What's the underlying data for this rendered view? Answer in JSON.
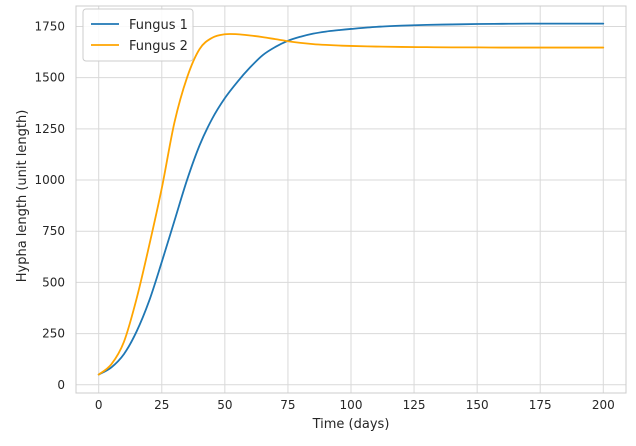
{
  "chart_data": {
    "type": "line",
    "xlabel": "Time (days)",
    "ylabel": "Hypha length (unit length)",
    "xlim": [
      -9,
      209
    ],
    "ylim": [
      -40,
      1850
    ],
    "xticks": [
      0,
      25,
      50,
      75,
      100,
      125,
      150,
      175,
      200
    ],
    "yticks": [
      0,
      250,
      500,
      750,
      1000,
      1250,
      1500,
      1750
    ],
    "grid": true,
    "legend_position": "top-left",
    "series": [
      {
        "name": "Fungus 1",
        "color": "#1f77b4",
        "x": [
          0,
          5,
          10,
          15,
          20,
          25,
          30,
          35,
          40,
          45,
          50,
          55,
          60,
          65,
          70,
          75,
          80,
          85,
          90,
          95,
          100,
          110,
          120,
          130,
          140,
          150,
          160,
          170,
          180,
          190,
          200
        ],
        "values": [
          50,
          85,
          150,
          260,
          410,
          600,
          800,
          1000,
          1170,
          1300,
          1400,
          1480,
          1550,
          1610,
          1650,
          1680,
          1700,
          1715,
          1725,
          1732,
          1738,
          1748,
          1754,
          1758,
          1760,
          1762,
          1763,
          1764,
          1764,
          1764,
          1764
        ]
      },
      {
        "name": "Fungus 2",
        "color": "#ffa500",
        "x": [
          0,
          5,
          10,
          15,
          20,
          25,
          30,
          35,
          40,
          45,
          50,
          55,
          60,
          65,
          70,
          75,
          80,
          85,
          90,
          95,
          100,
          110,
          120,
          130,
          140,
          150,
          160,
          170,
          180,
          190,
          200
        ],
        "values": [
          50,
          100,
          210,
          420,
          680,
          960,
          1280,
          1500,
          1640,
          1695,
          1712,
          1712,
          1706,
          1698,
          1688,
          1678,
          1670,
          1664,
          1660,
          1657,
          1655,
          1652,
          1650,
          1649,
          1648,
          1648,
          1647,
          1647,
          1647,
          1647,
          1647
        ]
      }
    ]
  }
}
